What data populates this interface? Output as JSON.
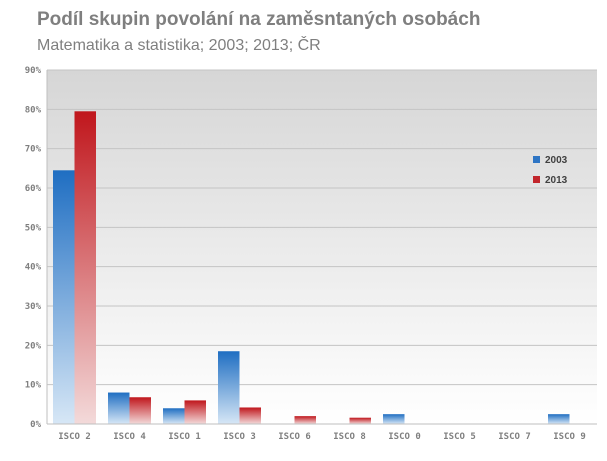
{
  "colors": {
    "series_2003": "#2e75c4",
    "series_2013": "#c2262c",
    "plot_top": "#d9d9d9",
    "plot_bottom": "#ffffff",
    "text": "#7f7f7f"
  },
  "chart_data": {
    "type": "bar",
    "title": "Podíl skupin povolání na zaměsntaných osobách",
    "subtitle": "Matematika a statistika; 2003; 2013; ČR",
    "categories": [
      "ISCO 2",
      "ISCO 4",
      "ISCO 1",
      "ISCO 3",
      "ISCO 6",
      "ISCO 8",
      "ISCO 0",
      "ISCO 5",
      "ISCO 7",
      "ISCO 9"
    ],
    "series": [
      {
        "name": "2003",
        "values": [
          64.5,
          8.0,
          4.0,
          18.5,
          0,
          0,
          2.5,
          0,
          0,
          2.5
        ]
      },
      {
        "name": "2013",
        "values": [
          79.5,
          6.8,
          6.0,
          4.2,
          2.0,
          1.6,
          0,
          0,
          0,
          0
        ]
      }
    ],
    "ylim": [
      0,
      90
    ],
    "yticks": [
      "0%",
      "10%",
      "20%",
      "30%",
      "40%",
      "50%",
      "60%",
      "70%",
      "80%",
      "90%"
    ],
    "grid": true,
    "legend_position": "right"
  }
}
